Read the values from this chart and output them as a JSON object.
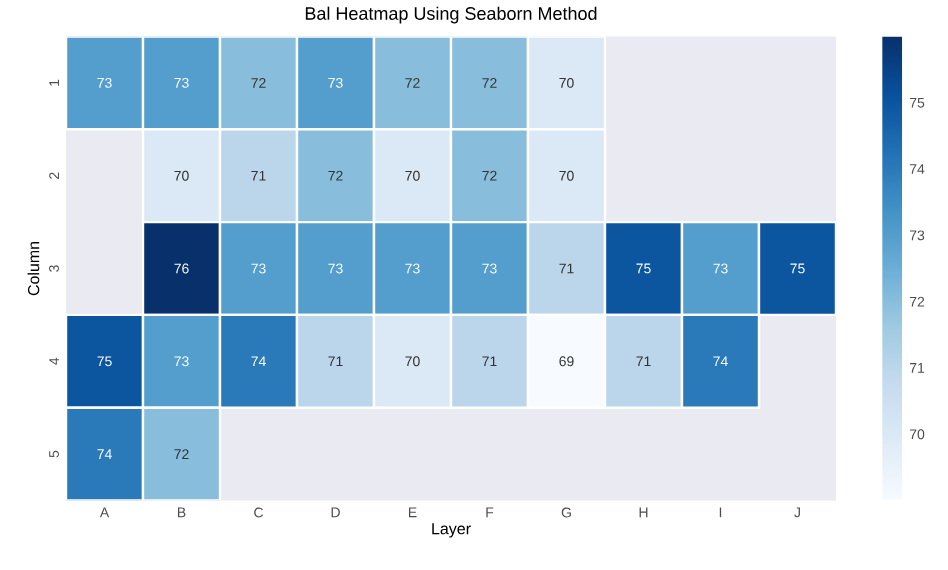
{
  "chart_data": {
    "type": "heatmap",
    "title": "Bal Heatmap Using Seaborn Method",
    "xlabel": "Layer",
    "ylabel": "Column",
    "categories": [
      "A",
      "B",
      "C",
      "D",
      "E",
      "F",
      "G",
      "H",
      "I",
      "J"
    ],
    "y_categories": [
      "1",
      "2",
      "3",
      "4",
      "5"
    ],
    "cells": [
      [
        73,
        73,
        72,
        73,
        72,
        72,
        70,
        null,
        null,
        null
      ],
      [
        null,
        70,
        71,
        72,
        70,
        72,
        70,
        null,
        null,
        null
      ],
      [
        null,
        76,
        73,
        73,
        73,
        73,
        71,
        75,
        73,
        75
      ],
      [
        75,
        73,
        74,
        71,
        70,
        71,
        69,
        71,
        74,
        null
      ],
      [
        74,
        72,
        null,
        null,
        null,
        null,
        null,
        null,
        null,
        null
      ]
    ],
    "clim": [
      69,
      76
    ],
    "cticks": [
      70,
      71,
      72,
      73,
      74,
      75
    ],
    "data_labels": true
  }
}
